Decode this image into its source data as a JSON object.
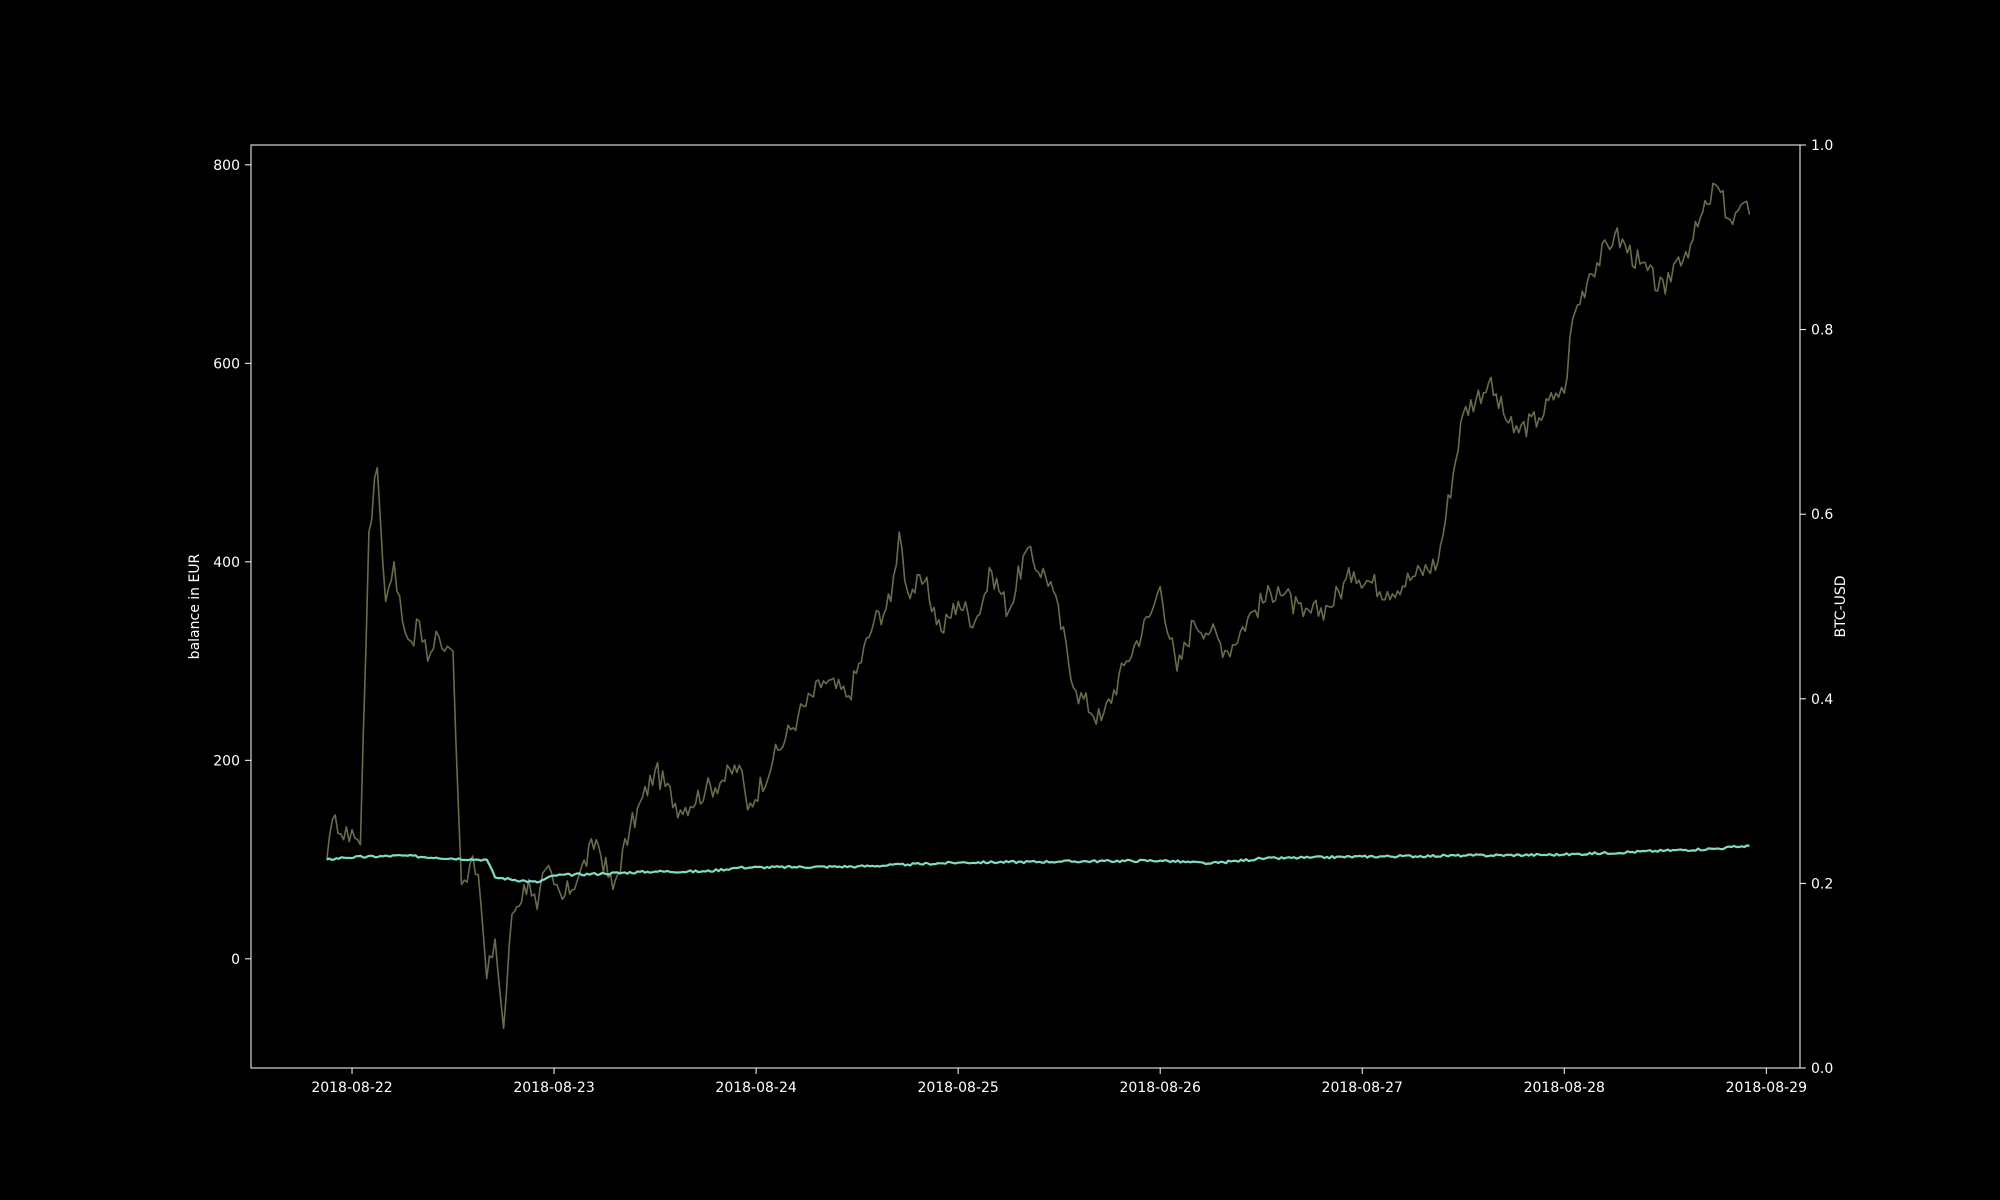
{
  "chart_data": {
    "type": "line",
    "background": "#000000",
    "foreground": "#ffffff",
    "grid": false,
    "legend": "none",
    "xlabel": "",
    "ylabel_left": "balance in EUR",
    "ylabel_right": "BTC-USD",
    "xlim": [
      "2018-08-21T12:00",
      "2018-08-29T04:00"
    ],
    "ylim_left": [
      -110,
      820
    ],
    "ylim_right": [
      0.0,
      1.0
    ],
    "x_ticks": [
      "2018-08-22",
      "2018-08-23",
      "2018-08-24",
      "2018-08-25",
      "2018-08-26",
      "2018-08-27",
      "2018-08-28",
      "2018-08-29"
    ],
    "y_ticks_left": [
      "0",
      "200",
      "400",
      "600",
      "800"
    ],
    "y_ticks_right": [
      "0.0",
      "0.2",
      "0.4",
      "0.6",
      "0.8",
      "1.0"
    ],
    "series": [
      {
        "axis": "left",
        "color": "#6b6b4c",
        "x": [
          "2018-08-21T21:00",
          "2018-08-21T22:00",
          "2018-08-21T23:00",
          "2018-08-22T00:00",
          "2018-08-22T01:00",
          "2018-08-22T02:00",
          "2018-08-22T03:00",
          "2018-08-22T04:00",
          "2018-08-22T05:00",
          "2018-08-22T06:00",
          "2018-08-22T07:00",
          "2018-08-22T08:00",
          "2018-08-22T09:00",
          "2018-08-22T10:00",
          "2018-08-22T11:00",
          "2018-08-22T12:00",
          "2018-08-22T13:00",
          "2018-08-22T14:00",
          "2018-08-22T15:00",
          "2018-08-22T16:00",
          "2018-08-22T17:00",
          "2018-08-22T18:00",
          "2018-08-22T19:00",
          "2018-08-22T21:00",
          "2018-08-22T22:00",
          "2018-08-22T23:00",
          "2018-08-23T00:00",
          "2018-08-23T01:00",
          "2018-08-23T03:00",
          "2018-08-23T05:00",
          "2018-08-23T07:00",
          "2018-08-23T09:00",
          "2018-08-23T12:00",
          "2018-08-23T15:00",
          "2018-08-23T18:00",
          "2018-08-23T20:00",
          "2018-08-23T22:00",
          "2018-08-23T23:00",
          "2018-08-24T02:00",
          "2018-08-24T05:00",
          "2018-08-24T08:00",
          "2018-08-24T11:00",
          "2018-08-24T14:00",
          "2018-08-24T16:00",
          "2018-08-24T17:00",
          "2018-08-24T18:00",
          "2018-08-24T20:00",
          "2018-08-24T22:00",
          "2018-08-25T00:00",
          "2018-08-25T02:00",
          "2018-08-25T04:00",
          "2018-08-25T06:00",
          "2018-08-25T08:00",
          "2018-08-25T11:00",
          "2018-08-25T14:00",
          "2018-08-25T17:00",
          "2018-08-25T20:00",
          "2018-08-25T23:00",
          "2018-08-26T00:00",
          "2018-08-26T02:00",
          "2018-08-26T04:00",
          "2018-08-26T06:00",
          "2018-08-26T08:00",
          "2018-08-26T11:00",
          "2018-08-26T14:00",
          "2018-08-26T17:00",
          "2018-08-26T20:00",
          "2018-08-26T23:00",
          "2018-08-27T03:00",
          "2018-08-27T06:00",
          "2018-08-27T09:00",
          "2018-08-27T12:00",
          "2018-08-27T15:00",
          "2018-08-27T18:00",
          "2018-08-27T21:00",
          "2018-08-27T23:00",
          "2018-08-28T00:00",
          "2018-08-28T01:00",
          "2018-08-28T03:00",
          "2018-08-28T06:00",
          "2018-08-28T09:00",
          "2018-08-28T12:00",
          "2018-08-28T13:00",
          "2018-08-28T15:00",
          "2018-08-28T17:00",
          "2018-08-28T18:00",
          "2018-08-28T20:00",
          "2018-08-28T21:00",
          "2018-08-28T22:00"
        ],
        "values": [
          100,
          145,
          120,
          130,
          115,
          430,
          495,
          360,
          400,
          340,
          320,
          340,
          300,
          330,
          310,
          310,
          75,
          95,
          85,
          -20,
          20,
          -70,
          45,
          80,
          50,
          90,
          75,
          60,
          85,
          120,
          70,
          130,
          190,
          150,
          170,
          180,
          195,
          150,
          200,
          245,
          280,
          265,
          340,
          360,
          430,
          370,
          380,
          330,
          360,
          340,
          390,
          350,
          410,
          380,
          270,
          240,
          300,
          350,
          375,
          290,
          340,
          330,
          310,
          350,
          375,
          345,
          355,
          390,
          370,
          385,
          400,
          550,
          580,
          530,
          545,
          570,
          570,
          645,
          690,
          730,
          700,
          670,
          700,
          720,
          760,
          780,
          740,
          760,
          750
        ],
        "noise": 12
      },
      {
        "axis": "left",
        "color": "#7fdcc8",
        "x": [
          "2018-08-21T21:00",
          "2018-08-21T23:00",
          "2018-08-22T06:00",
          "2018-08-22T10:00",
          "2018-08-22T15:00",
          "2018-08-22T16:00",
          "2018-08-22T17:00",
          "2018-08-22T22:00",
          "2018-08-23T00:00",
          "2018-08-23T06:00",
          "2018-08-23T12:00",
          "2018-08-23T18:00",
          "2018-08-23T22:00",
          "2018-08-24T12:00",
          "2018-08-24T18:00",
          "2018-08-25T00:00",
          "2018-08-25T12:00",
          "2018-08-26T00:00",
          "2018-08-26T06:00",
          "2018-08-26T12:00",
          "2018-08-26T18:00",
          "2018-08-27T00:00",
          "2018-08-27T12:00",
          "2018-08-28T00:00",
          "2018-08-28T12:00",
          "2018-08-28T18:00",
          "2018-08-28T22:00"
        ],
        "values": [
          100,
          102,
          104,
          102,
          100,
          100,
          82,
          77,
          84,
          86,
          88,
          88,
          92,
          93,
          95,
          97,
          98,
          99,
          96,
          101,
          102,
          103,
          104,
          105,
          109,
          111,
          114
        ],
        "noise": 1.2
      }
    ]
  }
}
